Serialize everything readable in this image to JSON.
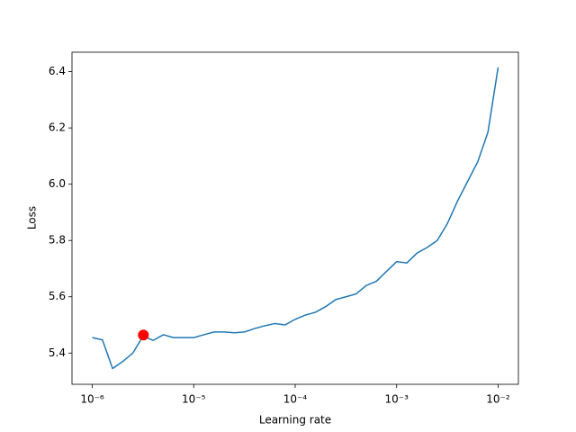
{
  "chart_data": {
    "type": "line",
    "log_x": true,
    "x_label": "Learning rate",
    "y_label": "Loss",
    "x": [
      1e-06,
      1.259e-06,
      1.585e-06,
      1.995e-06,
      2.512e-06,
      3.162e-06,
      3.981e-06,
      5.012e-06,
      6.31e-06,
      7.943e-06,
      1e-05,
      1.259e-05,
      1.585e-05,
      1.995e-05,
      2.512e-05,
      3.162e-05,
      3.981e-05,
      5.012e-05,
      6.31e-05,
      7.943e-05,
      0.0001,
      0.0001259,
      0.0001585,
      0.0001995,
      0.0002512,
      0.0003162,
      0.0003981,
      0.0005012,
      0.000631,
      0.0007943,
      0.001,
      0.001259,
      0.001585,
      0.001995,
      0.002512,
      0.003162,
      0.003981,
      0.005012,
      0.00631,
      0.007943,
      0.01
    ],
    "series": [
      {
        "name": "Loss",
        "color": "#1f77b4",
        "values": [
          5.455,
          5.447,
          5.345,
          5.37,
          5.4,
          5.46,
          5.445,
          5.465,
          5.455,
          5.455,
          5.455,
          5.465,
          5.475,
          5.475,
          5.472,
          5.475,
          5.487,
          5.497,
          5.505,
          5.5,
          5.52,
          5.535,
          5.545,
          5.565,
          5.59,
          5.6,
          5.61,
          5.64,
          5.655,
          5.69,
          5.725,
          5.72,
          5.755,
          5.775,
          5.8,
          5.86,
          5.94,
          6.01,
          6.08,
          6.185,
          6.415
        ]
      }
    ],
    "marker": {
      "x": 3.19e-06,
      "y": 5.464,
      "color": "#ff0000"
    },
    "xlim": [
      6.31e-07,
      0.01585
    ],
    "xticks": [
      {
        "value": 1e-06,
        "label": "10⁻⁶"
      },
      {
        "value": 1e-05,
        "label": "10⁻⁵"
      },
      {
        "value": 0.0001,
        "label": "10⁻⁴"
      },
      {
        "value": 0.001,
        "label": "10⁻³"
      },
      {
        "value": 0.01,
        "label": "10⁻²"
      }
    ],
    "ylim": [
      5.289,
      6.469
    ],
    "yticks": [
      5.4,
      5.6,
      5.8,
      {
        "value": 6.0,
        "label": "6.0"
      },
      6.2,
      6.4
    ]
  }
}
